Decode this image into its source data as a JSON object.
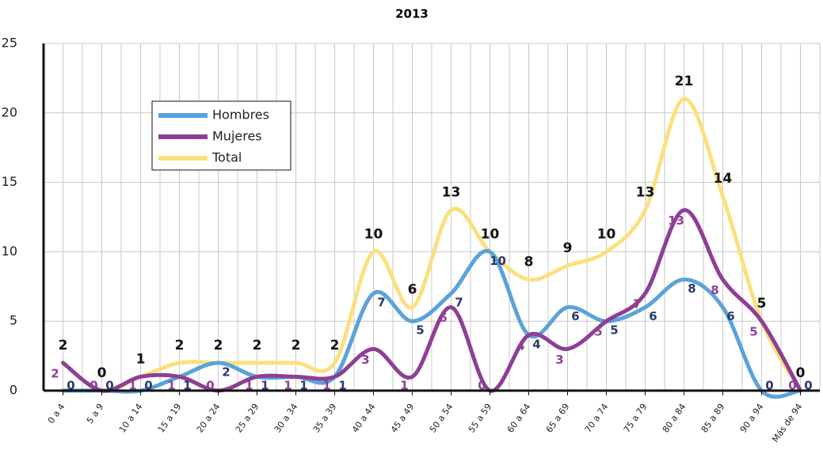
{
  "chart_data": {
    "type": "line",
    "title": "2013",
    "categories": [
      "0 a 4",
      "5 a 9",
      "10 a 14",
      "15 a 19",
      "20 a 24",
      "25 a 29",
      "30 a 34",
      "35 a 39",
      "40 a 44",
      "45 a 49",
      "50 a 54",
      "55 a 59",
      "60 a 64",
      "65 a 69",
      "70 a 74",
      "75 a 79",
      "80 a 84",
      "85 a 89",
      "90 a 94",
      "Más de 94"
    ],
    "series": [
      {
        "name": "Hombres",
        "color": "#5ba3d9",
        "values": [
          0,
          0,
          0,
          1,
          2,
          1,
          1,
          1,
          7,
          5,
          7,
          10,
          4,
          6,
          5,
          6,
          8,
          6,
          0,
          0
        ]
      },
      {
        "name": "Mujeres",
        "color": "#8e3f95",
        "values": [
          2,
          0,
          1,
          1,
          0,
          1,
          1,
          1,
          3,
          1,
          6,
          0,
          4,
          3,
          5,
          7,
          13,
          8,
          5,
          0
        ]
      },
      {
        "name": "Total",
        "color": "#fbe07f",
        "values": [
          2,
          0,
          1,
          2,
          2,
          2,
          2,
          2,
          10,
          6,
          13,
          10,
          8,
          9,
          10,
          13,
          21,
          14,
          5,
          0
        ]
      }
    ],
    "ylim": [
      0,
      25
    ],
    "yticks": [
      0,
      5,
      10,
      15,
      20,
      25
    ],
    "grid": true,
    "legend": "upper left"
  }
}
